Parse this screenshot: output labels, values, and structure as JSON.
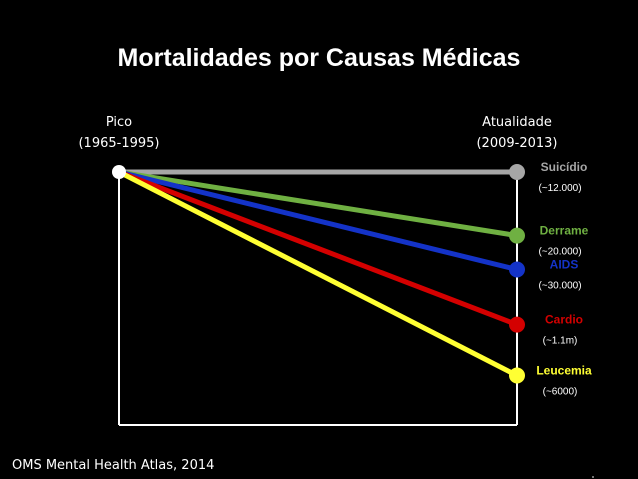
{
  "chart_data": {
    "type": "line",
    "title": "Mortalidades por Causas Médicas",
    "x_labels": [
      {
        "line1": "Pico",
        "line2": "(1965-1995)"
      },
      {
        "line1": "Atualidade",
        "line2": "(2009-2013)"
      }
    ],
    "y_range_relative": [
      0,
      1
    ],
    "series": [
      {
        "name": "Suicídio",
        "count_label": "(~12.000)",
        "start": 1.0,
        "end": 1.0,
        "color": "#a6a6a6"
      },
      {
        "name": "Derrame",
        "count_label": "(~20.000)",
        "start": 1.0,
        "end": 0.7,
        "color": "#6fb042"
      },
      {
        "name": "AIDS",
        "count_label": "(~30.000)",
        "start": 1.0,
        "end": 0.54,
        "color": "#1433c8"
      },
      {
        "name": "Cardio",
        "count_label": "(~1.1m)",
        "start": 1.0,
        "end": 0.28,
        "color": "#d40000"
      },
      {
        "name": "Leucemia",
        "count_label": "(~6000)",
        "start": 1.0,
        "end": 0.04,
        "color": "#ffff33"
      }
    ],
    "source": "OMS Mental Health Atlas, 2014"
  }
}
